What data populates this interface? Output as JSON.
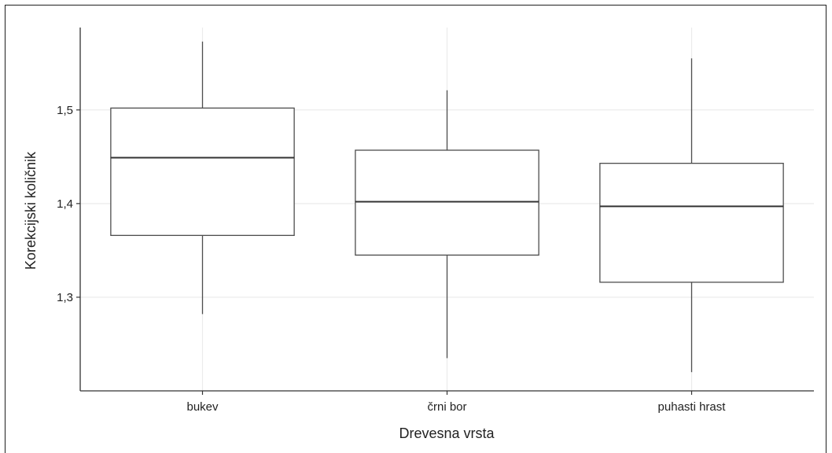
{
  "chart_data": {
    "type": "box",
    "title": "",
    "xlabel": "Drevesna vrsta",
    "ylabel": "Korekcijski količnik",
    "categories": [
      "bukev",
      "črni bor",
      "puhasti hrast"
    ],
    "boxes": [
      {
        "category": "bukev",
        "min": 1.282,
        "q1": 1.366,
        "median": 1.449,
        "q3": 1.502,
        "max": 1.573
      },
      {
        "category": "črni bor",
        "min": 1.235,
        "q1": 1.345,
        "median": 1.402,
        "q3": 1.457,
        "max": 1.521
      },
      {
        "category": "puhasti hrast",
        "min": 1.22,
        "q1": 1.316,
        "median": 1.397,
        "q3": 1.443,
        "max": 1.555
      }
    ],
    "ylim": [
      1.2,
      1.588
    ],
    "yticks": [
      1.3,
      1.4,
      1.5
    ],
    "ytick_labels": [
      "1,3",
      "1,4",
      "1,5"
    ],
    "grid": true,
    "legend": "none",
    "colors": {
      "box_fill": "#ffffff",
      "box_stroke": "#4d4d4d",
      "median": "#333333",
      "grid": "#ebebeb",
      "axis": "#333333"
    }
  }
}
